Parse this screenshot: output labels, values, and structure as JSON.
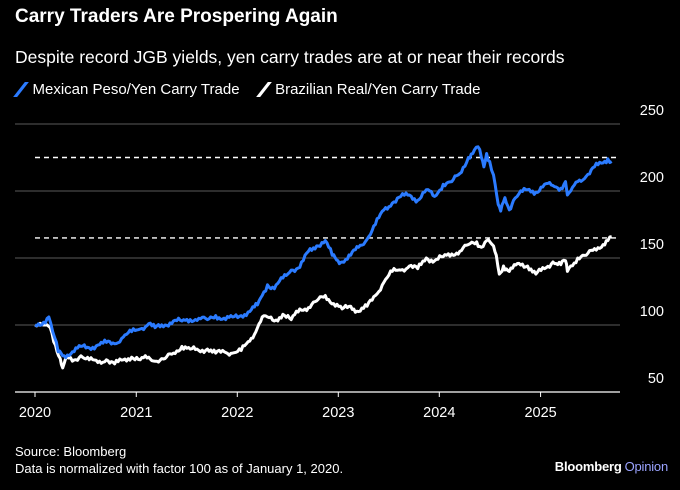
{
  "header": {
    "title": "Carry Traders Are Prospering Again",
    "subtitle": "Despite record JGB yields, yen carry trades are at or near their records"
  },
  "footer": {
    "source": "Source: Bloomberg",
    "note": "Data is normalized with factor 100 as of January 1, 2020.",
    "brand_main": "Bloomberg",
    "brand_accent": "Opinion"
  },
  "colors": {
    "background": "#000000",
    "mxn_series": "#2b7bff",
    "brl_series": "#ffffff",
    "grid": "#5a5a5a",
    "record_line": "#ffffff"
  },
  "chart_data": {
    "type": "line",
    "title": "Carry Traders Are Prospering Again",
    "subtitle": "Despite record JGB yields, yen carry trades are at or near their records",
    "xlabel": "",
    "ylabel": "",
    "x_range": [
      "2020-01-01",
      "2025-10-15"
    ],
    "ylim": [
      50,
      250
    ],
    "y_ticks": [
      50,
      100,
      150,
      200,
      250
    ],
    "x_ticks": [
      "2020",
      "2021",
      "2022",
      "2023",
      "2024",
      "2025"
    ],
    "grid": true,
    "y_axis_side": "right",
    "legend_position": "top-left",
    "reference_lines": [
      {
        "series": "Mexican Peso/Yen Carry Trade",
        "value": 225,
        "style": "dashed"
      },
      {
        "series": "Brazilian Real/Yen Carry Trade",
        "value": 165,
        "style": "dashed"
      }
    ],
    "series": [
      {
        "name": "Mexican Peso/Yen Carry Trade",
        "color": "#2b7bff",
        "points": [
          [
            "2020-01-01",
            100
          ],
          [
            "2020-02-01",
            102
          ],
          [
            "2020-02-20",
            106
          ],
          [
            "2020-03-05",
            95
          ],
          [
            "2020-03-25",
            80
          ],
          [
            "2020-04-15",
            77
          ],
          [
            "2020-05-15",
            80
          ],
          [
            "2020-06-15",
            84
          ],
          [
            "2020-07-15",
            83
          ],
          [
            "2020-08-15",
            85
          ],
          [
            "2020-09-15",
            87
          ],
          [
            "2020-10-15",
            86
          ],
          [
            "2020-11-15",
            91
          ],
          [
            "2020-12-15",
            95
          ],
          [
            "2021-01-15",
            97
          ],
          [
            "2021-02-15",
            101
          ],
          [
            "2021-03-10",
            98
          ],
          [
            "2021-04-15",
            100
          ],
          [
            "2021-05-15",
            103
          ],
          [
            "2021-06-15",
            103
          ],
          [
            "2021-07-15",
            104
          ],
          [
            "2021-08-15",
            105
          ],
          [
            "2021-09-15",
            104
          ],
          [
            "2021-10-15",
            107
          ],
          [
            "2021-11-20",
            104
          ],
          [
            "2021-12-15",
            106
          ],
          [
            "2022-01-15",
            107
          ],
          [
            "2022-02-15",
            110
          ],
          [
            "2022-03-15",
            115
          ],
          [
            "2022-04-01",
            122
          ],
          [
            "2022-04-20",
            130
          ],
          [
            "2022-05-15",
            127
          ],
          [
            "2022-06-15",
            135
          ],
          [
            "2022-07-15",
            141
          ],
          [
            "2022-08-15",
            143
          ],
          [
            "2022-09-15",
            155
          ],
          [
            "2022-10-15",
            159
          ],
          [
            "2022-11-15",
            163
          ],
          [
            "2022-12-10",
            152
          ],
          [
            "2022-12-31",
            148
          ],
          [
            "2023-01-15",
            147
          ],
          [
            "2023-02-15",
            152
          ],
          [
            "2023-03-15",
            158
          ],
          [
            "2023-04-15",
            164
          ],
          [
            "2023-05-15",
            175
          ],
          [
            "2023-06-15",
            186
          ],
          [
            "2023-07-15",
            191
          ],
          [
            "2023-08-15",
            196
          ],
          [
            "2023-09-15",
            197
          ],
          [
            "2023-10-15",
            193
          ],
          [
            "2023-11-15",
            201
          ],
          [
            "2023-12-15",
            196
          ],
          [
            "2024-01-15",
            205
          ],
          [
            "2024-02-15",
            207
          ],
          [
            "2024-03-15",
            213
          ],
          [
            "2024-04-15",
            225
          ],
          [
            "2024-05-01",
            228
          ],
          [
            "2024-05-20",
            233
          ],
          [
            "2024-06-01",
            225
          ],
          [
            "2024-06-10",
            218
          ],
          [
            "2024-06-20",
            228
          ],
          [
            "2024-07-01",
            222
          ],
          [
            "2024-07-15",
            212
          ],
          [
            "2024-08-01",
            190
          ],
          [
            "2024-08-10",
            185
          ],
          [
            "2024-08-25",
            195
          ],
          [
            "2024-09-10",
            186
          ],
          [
            "2024-09-25",
            193
          ],
          [
            "2024-10-15",
            198
          ],
          [
            "2024-11-15",
            201
          ],
          [
            "2024-12-15",
            199
          ],
          [
            "2025-01-15",
            205
          ],
          [
            "2025-02-15",
            204
          ],
          [
            "2025-03-15",
            202
          ],
          [
            "2025-04-01",
            207
          ],
          [
            "2025-04-08",
            197
          ],
          [
            "2025-04-20",
            200
          ],
          [
            "2025-05-15",
            207
          ],
          [
            "2025-06-15",
            211
          ],
          [
            "2025-07-15",
            218
          ],
          [
            "2025-08-15",
            221
          ],
          [
            "2025-09-01",
            224
          ],
          [
            "2025-09-15",
            222
          ]
        ]
      },
      {
        "name": "Brazilian Real/Yen Carry Trade",
        "color": "#ffffff",
        "points": [
          [
            "2020-01-01",
            100
          ],
          [
            "2020-02-01",
            100
          ],
          [
            "2020-02-25",
            98
          ],
          [
            "2020-03-15",
            85
          ],
          [
            "2020-04-01",
            75
          ],
          [
            "2020-04-10",
            68
          ],
          [
            "2020-04-25",
            76
          ],
          [
            "2020-05-15",
            73
          ],
          [
            "2020-06-15",
            77
          ],
          [
            "2020-07-15",
            74
          ],
          [
            "2020-08-15",
            72
          ],
          [
            "2020-09-15",
            74
          ],
          [
            "2020-10-15",
            71
          ],
          [
            "2020-11-15",
            74
          ],
          [
            "2020-12-15",
            76
          ],
          [
            "2021-01-15",
            74
          ],
          [
            "2021-02-15",
            76
          ],
          [
            "2021-03-10",
            73
          ],
          [
            "2021-04-15",
            75
          ],
          [
            "2021-05-15",
            79
          ],
          [
            "2021-06-15",
            84
          ],
          [
            "2021-07-15",
            82
          ],
          [
            "2021-08-15",
            81
          ],
          [
            "2021-09-15",
            82
          ],
          [
            "2021-10-15",
            79
          ],
          [
            "2021-11-15",
            80
          ],
          [
            "2021-12-15",
            79
          ],
          [
            "2022-01-15",
            81
          ],
          [
            "2022-02-15",
            88
          ],
          [
            "2022-03-15",
            98
          ],
          [
            "2022-04-01",
            106
          ],
          [
            "2022-04-20",
            106
          ],
          [
            "2022-05-15",
            103
          ],
          [
            "2022-06-15",
            108
          ],
          [
            "2022-07-15",
            104
          ],
          [
            "2022-08-15",
            112
          ],
          [
            "2022-09-15",
            113
          ],
          [
            "2022-10-15",
            118
          ],
          [
            "2022-11-15",
            122
          ],
          [
            "2022-12-15",
            116
          ],
          [
            "2023-01-15",
            112
          ],
          [
            "2023-02-15",
            114
          ],
          [
            "2023-03-15",
            110
          ],
          [
            "2023-04-15",
            114
          ],
          [
            "2023-05-15",
            122
          ],
          [
            "2023-06-15",
            132
          ],
          [
            "2023-07-15",
            140
          ],
          [
            "2023-08-15",
            141
          ],
          [
            "2023-09-15",
            144
          ],
          [
            "2023-10-15",
            142
          ],
          [
            "2023-11-15",
            150
          ],
          [
            "2023-12-15",
            148
          ],
          [
            "2024-01-15",
            151
          ],
          [
            "2024-02-15",
            153
          ],
          [
            "2024-03-15",
            155
          ],
          [
            "2024-04-15",
            160
          ],
          [
            "2024-05-15",
            162
          ],
          [
            "2024-06-01",
            158
          ],
          [
            "2024-06-20",
            163
          ],
          [
            "2024-07-10",
            160
          ],
          [
            "2024-07-25",
            152
          ],
          [
            "2024-08-05",
            138
          ],
          [
            "2024-08-20",
            144
          ],
          [
            "2024-09-10",
            140
          ],
          [
            "2024-10-15",
            146
          ],
          [
            "2024-11-15",
            144
          ],
          [
            "2024-12-15",
            138
          ],
          [
            "2025-01-15",
            142
          ],
          [
            "2025-02-15",
            147
          ],
          [
            "2025-03-15",
            145
          ],
          [
            "2025-04-01",
            148
          ],
          [
            "2025-04-08",
            140
          ],
          [
            "2025-04-20",
            144
          ],
          [
            "2025-05-15",
            150
          ],
          [
            "2025-06-15",
            152
          ],
          [
            "2025-07-15",
            157
          ],
          [
            "2025-08-15",
            160
          ],
          [
            "2025-09-01",
            163
          ],
          [
            "2025-09-15",
            166
          ]
        ]
      }
    ]
  }
}
